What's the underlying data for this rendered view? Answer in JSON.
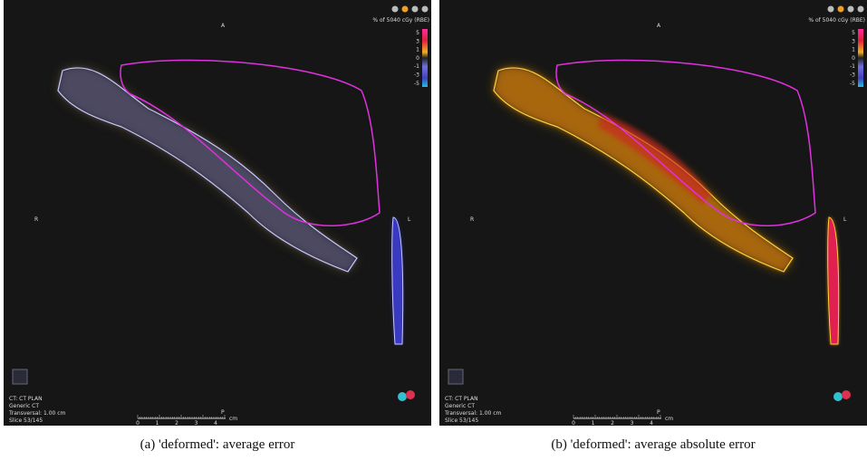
{
  "panels": [
    {
      "caption": "(a)  'deformed': average error",
      "orientation": {
        "anterior": "A",
        "right": "R",
        "left": "L",
        "posterior": "P"
      },
      "legend": {
        "title": "% of 5040 cGy (RBE)",
        "ticks": [
          "5",
          "3",
          "1",
          "0",
          "-1",
          "-3",
          "-5"
        ]
      },
      "info": [
        "CT: CT PLAN",
        "Generic CT",
        "Transversal: 1.00 cm",
        "Slice 53/145"
      ],
      "scale": {
        "ticks": [
          "0",
          "1",
          "2",
          "3",
          "4"
        ],
        "unit": "cm"
      }
    },
    {
      "caption": "(b)  'deformed': average absolute error",
      "orientation": {
        "anterior": "A",
        "right": "R",
        "left": "L",
        "posterior": "P"
      },
      "legend": {
        "title": "% of 5040 cGy (RBE)",
        "ticks": [
          "5",
          "3",
          "1",
          "0",
          "-1",
          "-3",
          "-5"
        ]
      },
      "info": [
        "CT: CT PLAN",
        "Generic CT",
        "Transversal: 1.00 cm",
        "Slice 53/145"
      ],
      "scale": {
        "ticks": [
          "0",
          "1",
          "2",
          "3",
          "4"
        ],
        "unit": "cm"
      }
    }
  ]
}
